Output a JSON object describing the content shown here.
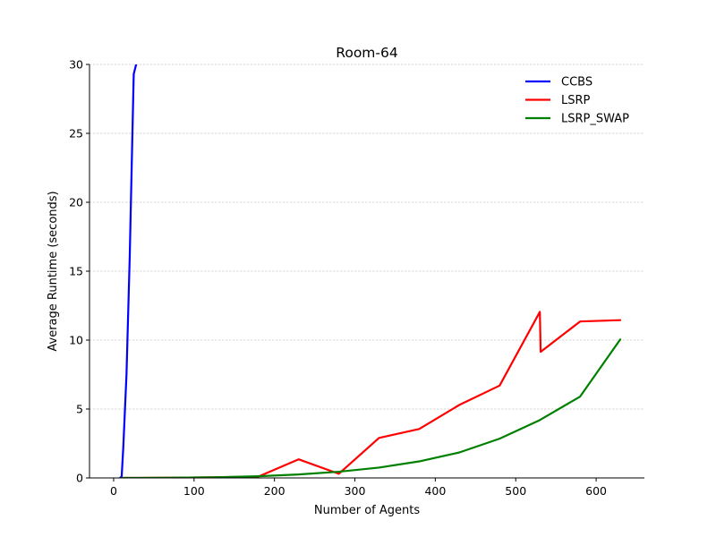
{
  "chart_data": {
    "type": "line",
    "title": "Room-64",
    "xlabel": "Number of Agents",
    "ylabel": "Average Runtime (seconds)",
    "xlim": [
      -30,
      660
    ],
    "ylim": [
      0,
      30
    ],
    "xticks": [
      0,
      100,
      200,
      300,
      400,
      500,
      600
    ],
    "yticks": [
      0,
      5,
      10,
      15,
      20,
      25,
      30
    ],
    "grid": "horizontal",
    "legend_position": "top-right",
    "series": [
      {
        "name": "CCBS",
        "color": "#0000ff",
        "points": [
          [
            8,
            0
          ],
          [
            10,
            0.1
          ],
          [
            12,
            2.2
          ],
          [
            16,
            7.5
          ],
          [
            20,
            16
          ],
          [
            23,
            24
          ],
          [
            25,
            29.3
          ],
          [
            28,
            30
          ]
        ]
      },
      {
        "name": "LSRP",
        "color": "#ff0000",
        "points": [
          [
            10,
            0
          ],
          [
            30,
            0
          ],
          [
            80,
            0.02
          ],
          [
            130,
            0.05
          ],
          [
            180,
            0.1
          ],
          [
            230,
            1.35
          ],
          [
            280,
            0.3
          ],
          [
            330,
            2.9
          ],
          [
            380,
            3.55
          ],
          [
            430,
            5.3
          ],
          [
            480,
            6.7
          ],
          [
            530,
            12.05
          ],
          [
            531,
            9.15
          ],
          [
            580,
            11.35
          ],
          [
            630,
            11.45
          ]
        ]
      },
      {
        "name": "LSRP_SWAP",
        "color": "#008000",
        "points": [
          [
            10,
            0
          ],
          [
            30,
            0
          ],
          [
            80,
            0.02
          ],
          [
            130,
            0.05
          ],
          [
            180,
            0.12
          ],
          [
            230,
            0.25
          ],
          [
            280,
            0.45
          ],
          [
            330,
            0.75
          ],
          [
            380,
            1.2
          ],
          [
            430,
            1.85
          ],
          [
            480,
            2.85
          ],
          [
            530,
            4.2
          ],
          [
            580,
            5.9
          ],
          [
            630,
            10.05
          ]
        ]
      }
    ]
  }
}
